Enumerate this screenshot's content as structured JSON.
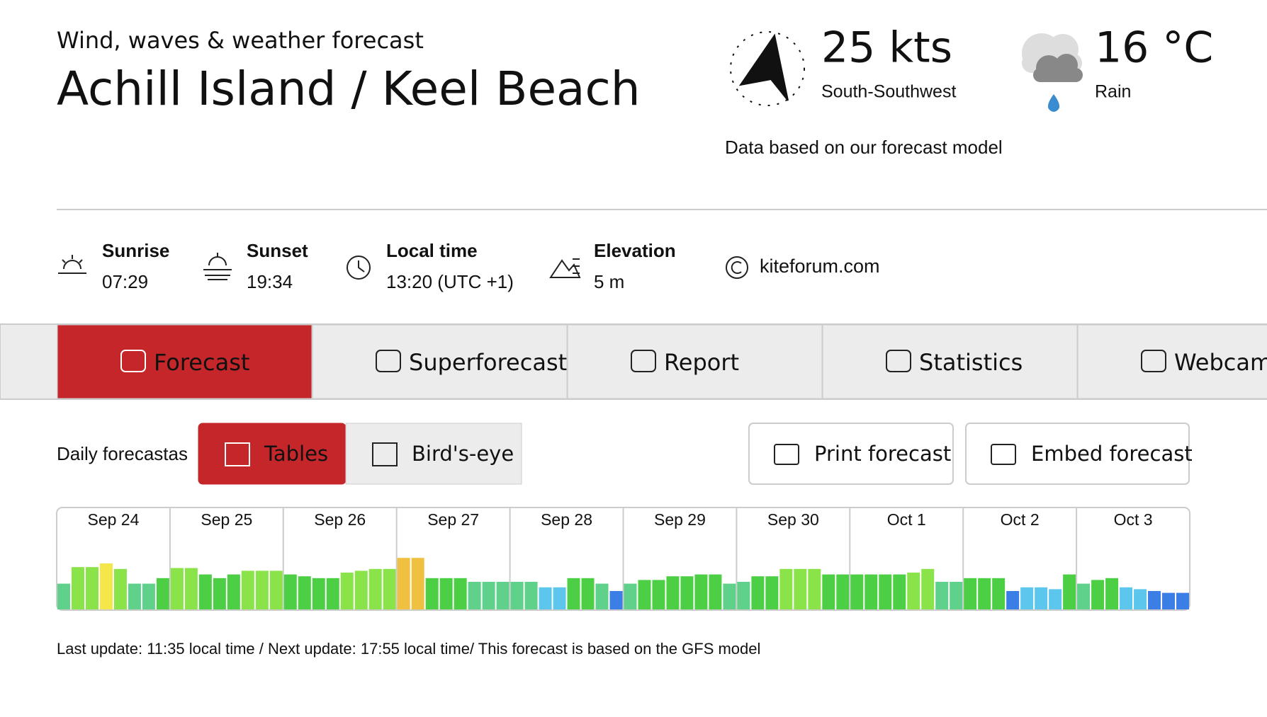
{
  "header": {
    "subtitle": "Wind, waves & weather forecast",
    "title": "Achill Island / Keel Beach"
  },
  "current": {
    "wind_speed": "25 kts",
    "wind_direction": "South-Southwest",
    "temperature": "16 °C",
    "weather": "Rain",
    "note": "Data based on our forecast model"
  },
  "info": [
    {
      "label": "Sunrise",
      "value": "07:29"
    },
    {
      "label": "Sunset",
      "value": "19:34"
    },
    {
      "label": "Local time",
      "value": "13:20 (UTC +1)"
    },
    {
      "label": "Elevation",
      "value": "5 m"
    },
    {
      "label": "kiteforum.com"
    }
  ],
  "tabs": [
    "Forecast",
    "Superforecast",
    "Report",
    "Statistics",
    "Webcam"
  ],
  "views": {
    "label": "Daily forecastas",
    "options": [
      "Tables",
      "Bird's-eye"
    ]
  },
  "buttons": [
    "Print forecast",
    "Embed forecast"
  ],
  "chart_data": {
    "type": "bar",
    "ylim": [
      0,
      70
    ],
    "days": [
      {
        "name": "Sep 24",
        "values": [
          28,
          46,
          46,
          50,
          44,
          28,
          28,
          34
        ]
      },
      {
        "name": "Sep 25",
        "values": [
          45,
          45,
          38,
          34,
          38,
          42,
          42,
          42
        ]
      },
      {
        "name": "Sep 26",
        "values": [
          38,
          36,
          34,
          34,
          40,
          42,
          44,
          44
        ]
      },
      {
        "name": "Sep 27",
        "values": [
          56,
          56,
          34,
          34,
          34,
          30,
          30,
          30
        ]
      },
      {
        "name": "Sep 28",
        "values": [
          30,
          30,
          24,
          24,
          34,
          34,
          28,
          20
        ]
      },
      {
        "name": "Sep 29",
        "values": [
          28,
          32,
          32,
          36,
          36,
          38,
          38,
          28
        ]
      },
      {
        "name": "Sep 30",
        "values": [
          30,
          36,
          36,
          44,
          44,
          44,
          38,
          38
        ]
      },
      {
        "name": "Oct 1",
        "values": [
          38,
          38,
          38,
          38,
          40,
          44,
          30,
          30
        ]
      },
      {
        "name": "Oct 2",
        "values": [
          34,
          34,
          34,
          20,
          24,
          24,
          22,
          38
        ]
      },
      {
        "name": "Oct 3",
        "values": [
          28,
          32,
          34,
          24,
          22,
          20,
          18,
          18
        ]
      }
    ]
  },
  "footer": "Last update: 11:35 local time / Next update: 17:55 local time/ This forecast is based on the GFS model"
}
